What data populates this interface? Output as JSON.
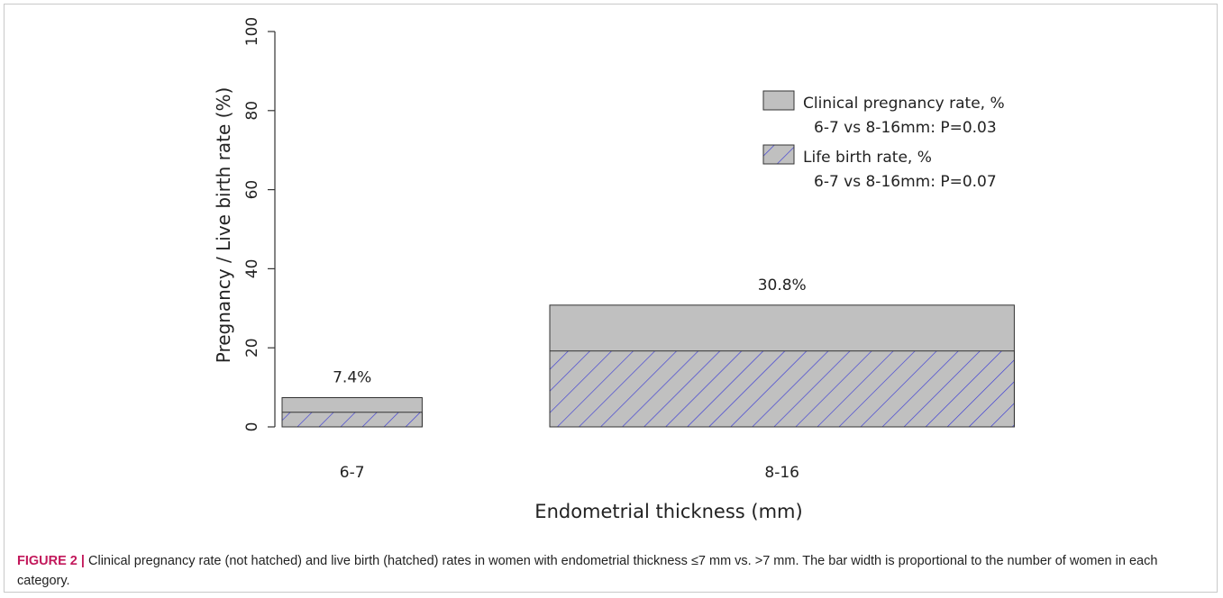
{
  "chart_data": {
    "type": "bar",
    "xlabel": "Endometrial thickness (mm)",
    "ylabel": "Pregnancy / Live birth rate (%)",
    "ylim": [
      0,
      100
    ],
    "yticks": [
      "0",
      "20",
      "40",
      "60",
      "80",
      "100"
    ],
    "grid": false,
    "bar_width_note": "proportional to number of women",
    "categories": [
      "6-7",
      "8-16"
    ],
    "relative_widths": [
      0.6,
      1.99
    ],
    "series": [
      {
        "name": "Clinical pregnancy rate, %",
        "values": [
          7.4,
          30.8
        ],
        "fill": "#c0c0c0",
        "hatched": false
      },
      {
        "name": "Life birth rate, %",
        "values": [
          3.7,
          19.2
        ],
        "fill": "#c0c0c0",
        "hatched": true,
        "hatch_color": "#3a3ad6"
      }
    ],
    "data_labels": [
      "7.4%",
      "30.8%"
    ],
    "legend": {
      "placement": "top-right",
      "entries": [
        {
          "label": "Clinical pregnancy rate, %",
          "note": "6-7 vs 8-16mm: P=0.03"
        },
        {
          "label": "Life birth rate, %",
          "note": "6-7 vs 8-16mm: P=0.07"
        }
      ]
    }
  },
  "caption": {
    "lead": "FIGURE 2 |",
    "text": " Clinical pregnancy rate (not hatched) and live birth (hatched) rates in women with endometrial thickness ≤7 mm vs. >7 mm. The bar width is proportional to the number of women in each category."
  }
}
